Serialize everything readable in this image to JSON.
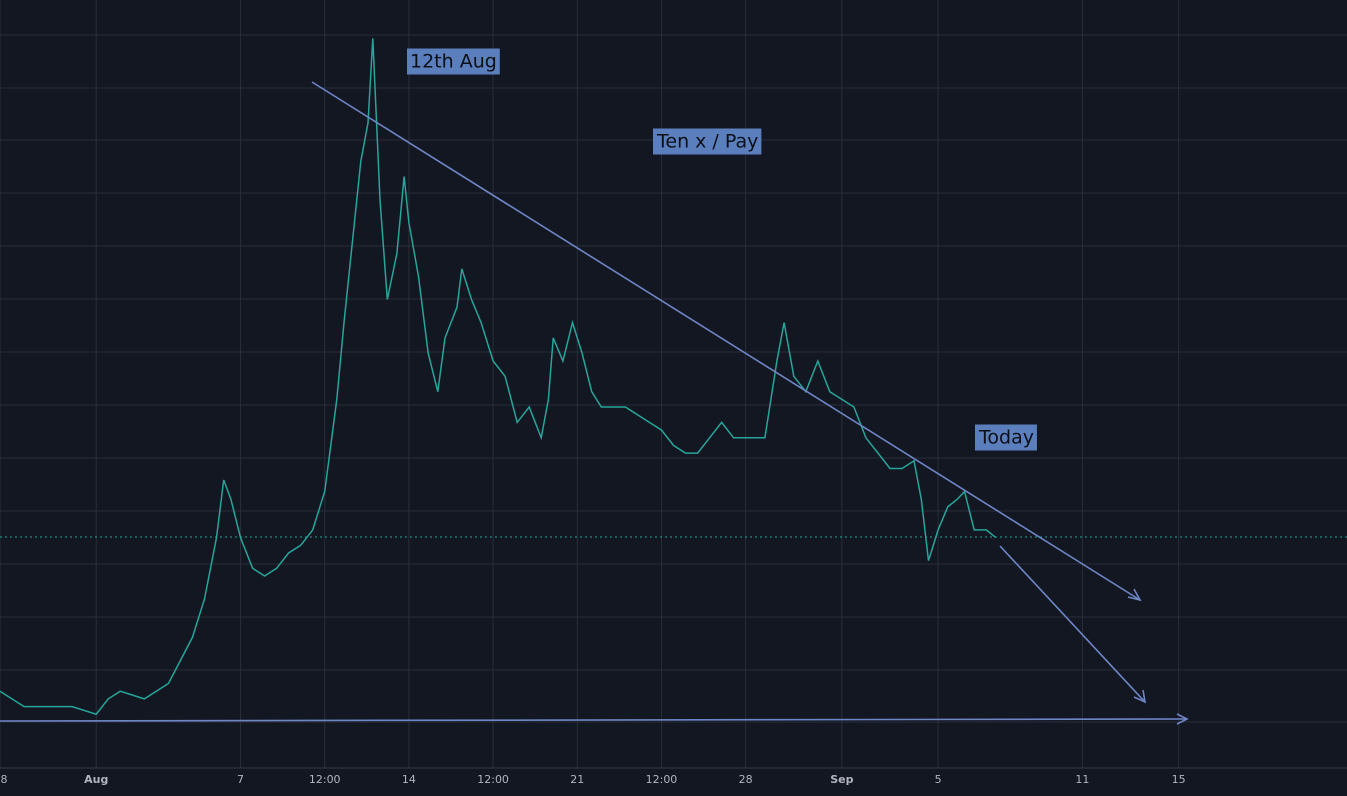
{
  "chart_data": {
    "type": "line",
    "annotations": [
      "12th Aug",
      "Ten x / Pay",
      "Today"
    ],
    "xlim": [
      -3,
      53
    ],
    "ylim": [
      0,
      100
    ],
    "xticks": [
      {
        "value": -3,
        "label": "8"
      },
      {
        "value": 1,
        "label": "Aug"
      },
      7,
      {
        "value": 10.5,
        "label": "12:00"
      },
      14,
      {
        "value": 17.5,
        "label": "12:00"
      },
      21,
      {
        "value": 24.5,
        "label": "12:00"
      },
      28,
      {
        "value": 32,
        "label": "Sep"
      },
      {
        "value": 36,
        "label": "5"
      },
      {
        "value": 42,
        "label": "11"
      },
      {
        "value": 46,
        "label": "15"
      }
    ],
    "grid": true,
    "series": [
      {
        "color": "#26a69a",
        "x": [
          -3,
          -2,
          -1,
          0,
          1,
          1.5,
          2,
          3,
          3.5,
          4,
          4.5,
          5,
          5.5,
          6,
          6.3,
          6.6,
          7,
          7.5,
          8,
          8.5,
          9,
          9.5,
          10,
          10.5,
          11,
          11.3,
          11.6,
          12,
          12.3,
          12.5,
          12.8,
          13.1,
          13.5,
          13.8,
          14,
          14.4,
          14.8,
          15.2,
          15.5,
          16,
          16.2,
          16.6,
          17,
          17.5,
          18,
          18.5,
          19,
          19.5,
          19.8,
          20,
          20.4,
          20.8,
          21.2,
          21.6,
          22,
          23,
          24,
          24.5,
          25,
          25.5,
          26,
          26.5,
          27,
          27.5,
          28,
          28.8,
          29.3,
          29.6,
          30,
          30.5,
          31,
          31.5,
          32,
          32.5,
          33,
          33.5,
          34,
          34.5,
          35,
          35.3,
          35.6,
          36,
          36.4,
          36.8,
          37.1,
          37.5,
          38,
          38.4
        ],
        "values": [
          10,
          8,
          8,
          8,
          7,
          9,
          10,
          9,
          10,
          11,
          14,
          17,
          22,
          30,
          37.5,
          35,
          30,
          26,
          25,
          26,
          28,
          29,
          31,
          36,
          48,
          58,
          67,
          79,
          84,
          95,
          74,
          61,
          67,
          77,
          71,
          64,
          54,
          49,
          56,
          60,
          65,
          61,
          58,
          53,
          51,
          45,
          47,
          43,
          48,
          56,
          53,
          58,
          54,
          49,
          47,
          47,
          45,
          44,
          42,
          41,
          41,
          43,
          45,
          43,
          43,
          43,
          53,
          58,
          51,
          49,
          53,
          49,
          48,
          47,
          43,
          41,
          39,
          39,
          40,
          35,
          27,
          31,
          34,
          35,
          36,
          31,
          31,
          30
        ]
      }
    ]
  }
}
